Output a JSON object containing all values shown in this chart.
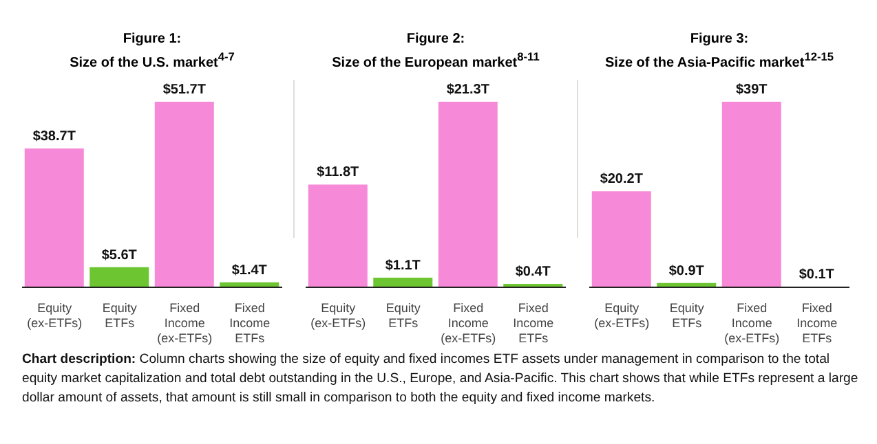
{
  "chart_data": [
    {
      "type": "bar",
      "title": "Figure 1:",
      "subtitle": "Size of the U.S. market$^{4-7}$",
      "categories": [
        "Equity (ex-ETFs)",
        "Equity ETFs",
        "Fixed Income (ex-ETFs)",
        "Fixed Income ETFs"
      ],
      "values": [
        38.7,
        5.6,
        51.7,
        1.4
      ],
      "value_labels": [
        "$38.7T",
        "$5.6T",
        "$51.7T",
        "$1.4T"
      ],
      "colors": [
        "#f78ad8",
        "#6cc531",
        "#f78ad8",
        "#6cc531"
      ],
      "tick_labels": "x"
    },
    {
      "type": "bar",
      "title": "Figure 2:",
      "subtitle": "Size of the European market$^{8-11}$",
      "categories": [
        "Equity (ex-ETFs)",
        "Equity ETFs",
        "Fixed Income (ex-ETFs)",
        "Fixed Income ETFs"
      ],
      "values": [
        11.8,
        1.1,
        21.3,
        0.4
      ],
      "value_labels": [
        "$11.8T",
        "$1.1T",
        "$21.3T",
        "$0.4T"
      ],
      "colors": [
        "#f78ad8",
        "#6cc531",
        "#f78ad8",
        "#6cc531"
      ],
      "tick_labels": "x"
    },
    {
      "type": "bar",
      "title": "Figure 3:",
      "subtitle": "Size of the Asia-Pacific market$^{12-15}$",
      "categories": [
        "Equity (ex-ETFs)",
        "Equity ETFs",
        "Fixed Income (ex-ETFs)",
        "Fixed Income ETFs"
      ],
      "values": [
        20.2,
        0.9,
        39,
        0.1
      ],
      "value_labels": [
        "$20.2T",
        "$0.9T",
        "$39T",
        "$0.1T"
      ],
      "colors": [
        "#f78ad8",
        "#6cc531",
        "#f78ad8",
        "#6cc531"
      ],
      "tick_labels": "x",
      "annotations": [
        "Chart description: Column charts showing the size of equity and fixed incomes ETF assets under management in comparison to the total equity market capitalization and total debt outstanding in the U.S., Europe, and Asia-Pacific. This chart shows that while ETFs represent a large dollar amount of assets, that amount is still small in comparison to both the equity and fixed income markets."
      ]
    }
  ]
}
